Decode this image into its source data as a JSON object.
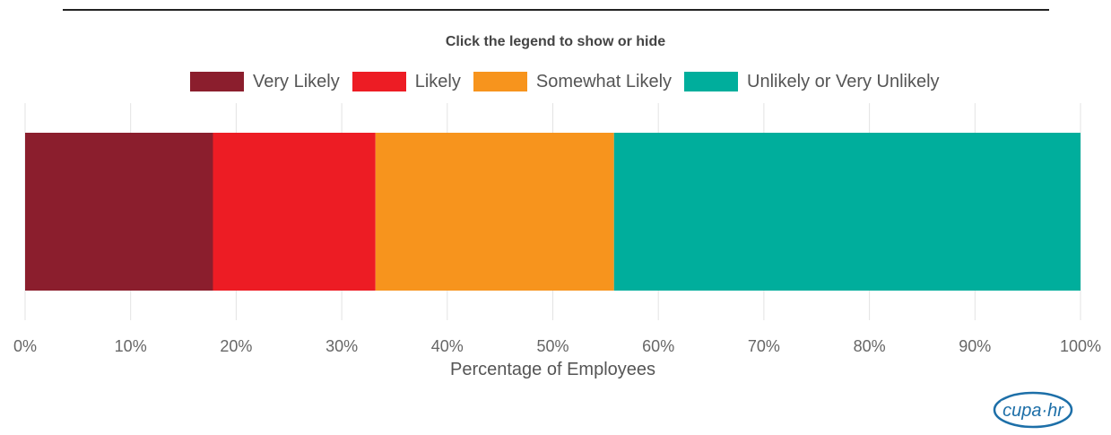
{
  "title": "Click the legend to show or hide",
  "chart_data": {
    "type": "bar",
    "orientation": "horizontal",
    "stacked": true,
    "categories": [
      ""
    ],
    "series": [
      {
        "name": "Very Likely",
        "values": [
          17.8
        ],
        "color": "#8b1e2d"
      },
      {
        "name": "Likely",
        "values": [
          15.4
        ],
        "color": "#ed1c24"
      },
      {
        "name": "Somewhat Likely",
        "values": [
          22.6
        ],
        "color": "#f7941d"
      },
      {
        "name": "Unlikely or Very Unlikely",
        "values": [
          44.2
        ],
        "color": "#00ae9c"
      }
    ],
    "xlabel": "Percentage of Employees",
    "xlim": [
      0,
      100
    ],
    "xticks": [
      "0%",
      "10%",
      "20%",
      "30%",
      "40%",
      "50%",
      "60%",
      "70%",
      "80%",
      "90%",
      "100%"
    ],
    "grid": true,
    "legend_position": "top"
  },
  "logo": {
    "text": "cupa·hr",
    "icon": "cupa-hr-logo"
  }
}
